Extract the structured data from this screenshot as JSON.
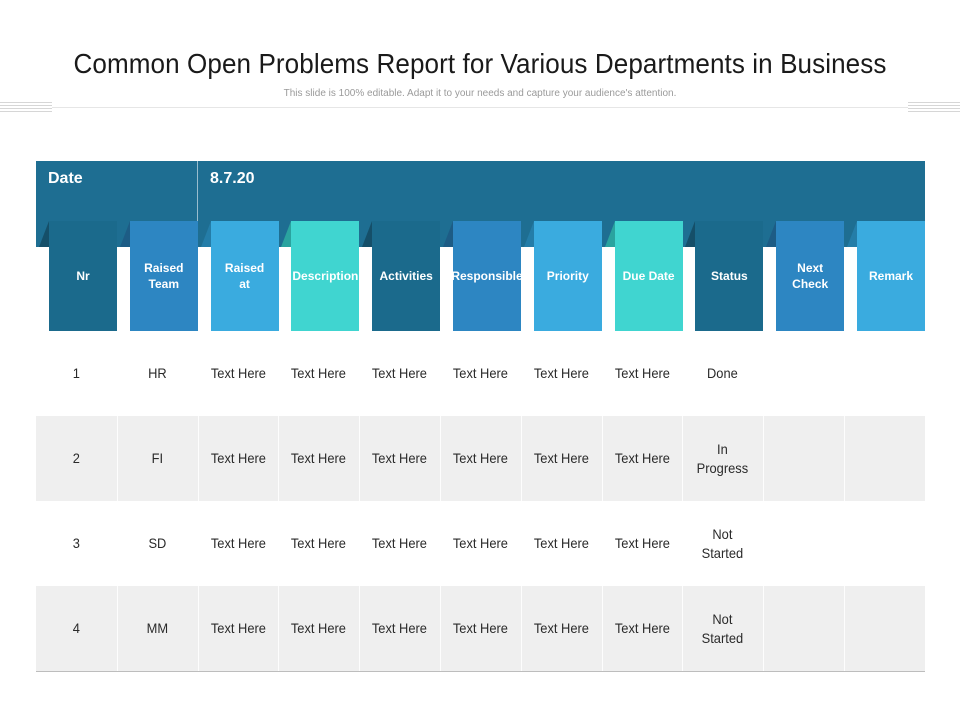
{
  "title": "Common Open Problems Report for Various Departments in Business",
  "subtitle": "This slide is 100% editable. Adapt it to your needs and capture your audience's attention.",
  "band": {
    "date_label": "Date",
    "date_value": "8.7.20"
  },
  "columns": [
    "Nr",
    "Raised Team",
    "Raised at",
    "Description",
    "Activities",
    "Responsible",
    "Priority",
    "Due Date",
    "Status",
    "Next Check",
    "Remark"
  ],
  "column_colors": [
    "#1b6a8c",
    "#2d86c2",
    "#3aabdf",
    "#40d5d0",
    "#1b6a8c",
    "#2d86c2",
    "#3aabdf",
    "#40d5d0",
    "#1b6a8c",
    "#2d86c2",
    "#3aabdf"
  ],
  "rows": [
    [
      "1",
      "HR",
      "Text Here",
      "Text Here",
      "Text Here",
      "Text Here",
      "Text Here",
      "Text Here",
      "Done",
      "",
      ""
    ],
    [
      "2",
      "FI",
      "Text Here",
      "Text Here",
      "Text Here",
      "Text Here",
      "Text Here",
      "Text Here",
      "In Progress",
      "",
      ""
    ],
    [
      "3",
      "SD",
      "Text Here",
      "Text Here",
      "Text Here",
      "Text Here",
      "Text Here",
      "Text Here",
      "Not Started",
      "",
      ""
    ],
    [
      "4",
      "MM",
      "Text Here",
      "Text Here",
      "Text Here",
      "Text Here",
      "Text Here",
      "Text Here",
      "Not Started",
      "",
      ""
    ]
  ]
}
